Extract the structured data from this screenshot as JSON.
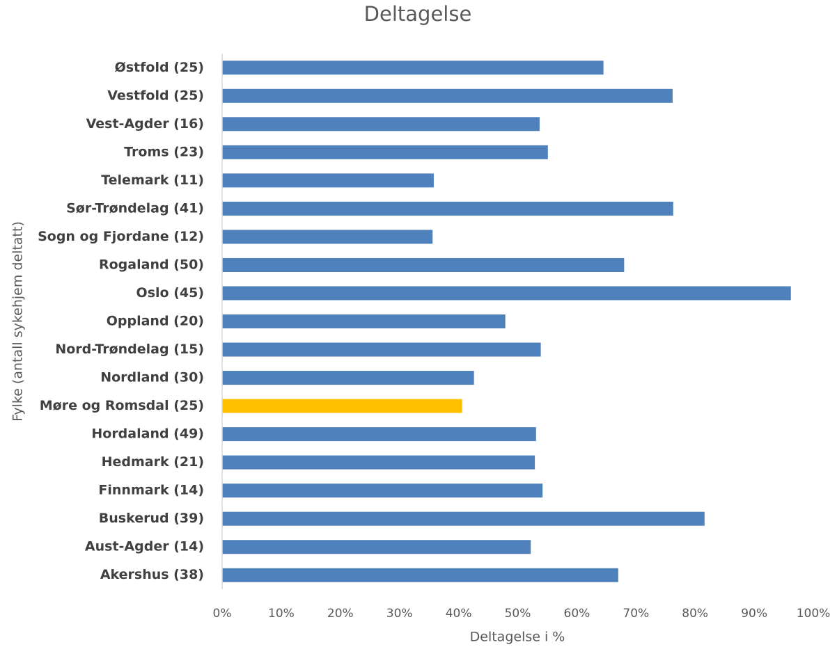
{
  "chart_data": {
    "type": "barh",
    "title": "Deltagelse",
    "xlabel": "Deltagelse i %",
    "ylabel": "Fylke (antall sykehjem deltatt)",
    "categories": [
      "Østfold (25)",
      "Vestfold (25)",
      "Vest-Agder (16)",
      "Troms (23)",
      "Telemark (11)",
      "Sør-Trøndelag (41)",
      "Sogn og Fjordane (12)",
      "Rogaland (50)",
      "Oslo (45)",
      "Oppland (20)",
      "Nord-Trøndelag (15)",
      "Nordland (30)",
      "Møre og Romsdal (25)",
      "Hordaland (49)",
      "Hedmark (21)",
      "Finnmark (14)",
      "Buskerud (39)",
      "Aust-Agder (14)",
      "Akershus (38)"
    ],
    "values": [
      64.5,
      76.2,
      53.7,
      55.1,
      35.8,
      76.3,
      35.6,
      68.0,
      96.2,
      47.9,
      53.9,
      42.6,
      40.6,
      53.1,
      52.9,
      54.2,
      81.6,
      52.2,
      67.0
    ],
    "colors": [
      "#4f81bd",
      "#4f81bd",
      "#4f81bd",
      "#4f81bd",
      "#4f81bd",
      "#4f81bd",
      "#4f81bd",
      "#4f81bd",
      "#4f81bd",
      "#4f81bd",
      "#4f81bd",
      "#4f81bd",
      "#ffc000",
      "#4f81bd",
      "#4f81bd",
      "#4f81bd",
      "#4f81bd",
      "#4f81bd",
      "#4f81bd"
    ],
    "xlim": [
      0,
      100
    ],
    "xticks": [
      {
        "value": 0,
        "label": "0%"
      },
      {
        "value": 10,
        "label": "10%"
      },
      {
        "value": 20,
        "label": "20%"
      },
      {
        "value": 30,
        "label": "30%"
      },
      {
        "value": 40,
        "label": "40%"
      },
      {
        "value": 50,
        "label": "50%"
      },
      {
        "value": 60,
        "label": "60%"
      },
      {
        "value": 70,
        "label": "70%"
      },
      {
        "value": 80,
        "label": "80%"
      },
      {
        "value": 90,
        "label": "90%"
      },
      {
        "value": 100,
        "label": "100%"
      }
    ],
    "grid": false
  }
}
